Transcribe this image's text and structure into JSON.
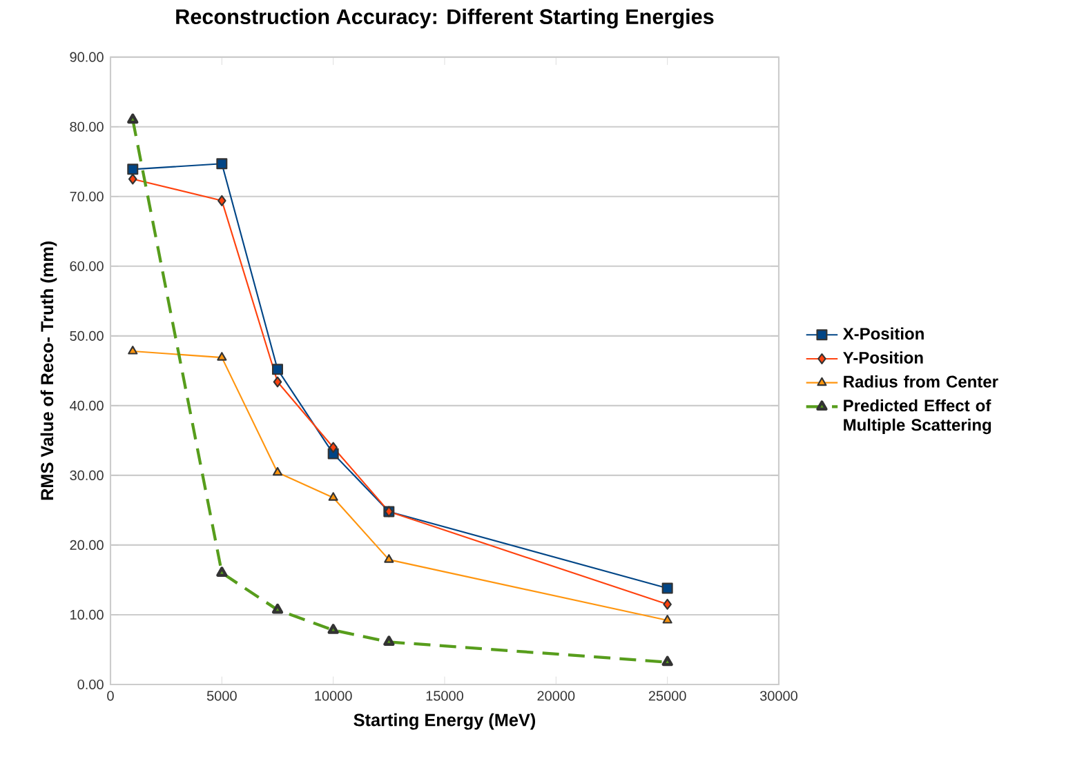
{
  "chart_data": {
    "type": "line",
    "title": "Reconstruction Accuracy: Different Starting Energies",
    "xlabel": "Starting Energy (MeV)",
    "ylabel": "RMS Value of Reco- Truth (mm)",
    "x": [
      1000,
      5000,
      7500,
      10000,
      12500,
      25000
    ],
    "series": [
      {
        "name": "X-Position",
        "color": "#004586",
        "marker": "square",
        "values": [
          73.9,
          74.7,
          45.2,
          33.1,
          24.8,
          13.8
        ]
      },
      {
        "name": "Y-Position",
        "color": "#ff420e",
        "marker": "diamond",
        "values": [
          72.5,
          69.4,
          43.4,
          34.0,
          24.8,
          11.5
        ]
      },
      {
        "name": "Radius from Center",
        "color": "#ff950e",
        "marker": "triangle",
        "values": [
          47.8,
          46.9,
          30.4,
          26.8,
          17.9,
          9.2
        ]
      },
      {
        "name": "Predicted Effect of Multiple Scattering",
        "color": "#579d1c",
        "marker": "triangle",
        "line_style": "dashed",
        "values": [
          81.0,
          16.0,
          10.7,
          7.8,
          6.1,
          3.2
        ]
      }
    ],
    "xlim": [
      0,
      30000
    ],
    "xticks": [
      0,
      5000,
      10000,
      15000,
      20000,
      25000,
      30000
    ],
    "ylim": [
      0,
      90
    ],
    "yticks": [
      {
        "value": 0,
        "label": "0.00"
      },
      {
        "value": 10,
        "label": "10.00"
      },
      {
        "value": 20,
        "label": "20.00"
      },
      {
        "value": 30,
        "label": "30.00"
      },
      {
        "value": 40,
        "label": "40.00"
      },
      {
        "value": 50,
        "label": "50.00"
      },
      {
        "value": 60,
        "label": "60.00"
      },
      {
        "value": 70,
        "label": "70.00"
      },
      {
        "value": 80,
        "label": "80.00"
      },
      {
        "value": 90,
        "label": "90.00"
      }
    ],
    "grid": "y",
    "legend": "right"
  }
}
